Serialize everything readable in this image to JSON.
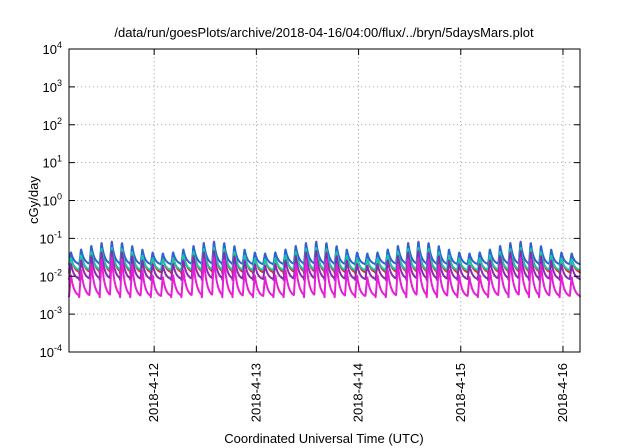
{
  "chart_data": {
    "type": "line",
    "title": "/data/run/goesPlots/archive/2018-04-16/04:00/flux/../bryn/5daysMars.plot",
    "xlabel": "Coordinated Universal Time (UTC)",
    "ylabel": "cGy/day",
    "yscale": "log",
    "ylim": [
      0.0001,
      10000
    ],
    "y_ticks": [
      {
        "base": "10",
        "exp": "-4",
        "value": 0.0001
      },
      {
        "base": "10",
        "exp": "-3",
        "value": 0.001
      },
      {
        "base": "10",
        "exp": "-2",
        "value": 0.01
      },
      {
        "base": "10",
        "exp": "-1",
        "value": 0.1
      },
      {
        "base": "10",
        "exp": "0",
        "value": 1
      },
      {
        "base": "10",
        "exp": "1",
        "value": 10
      },
      {
        "base": "10",
        "exp": "2",
        "value": 100
      },
      {
        "base": "10",
        "exp": "3",
        "value": 1000
      },
      {
        "base": "10",
        "exp": "4",
        "value": 10000
      }
    ],
    "x_ticks": [
      "2018-4-12",
      "2018-4-13",
      "2018-4-14",
      "2018-4-15",
      "2018-4-16"
    ],
    "xlim": [
      "2018-04-11 04:00",
      "2018-04-16 04:00"
    ],
    "grid": true,
    "pulse_period_hours": 2.4,
    "series": [
      {
        "color": "#e8262d",
        "peak": 0.09,
        "trough": 0.012
      },
      {
        "color": "#2a63d6",
        "peak": 0.085,
        "trough": 0.02
      },
      {
        "color": "#16c7a8",
        "peak": 0.06,
        "trough": 0.014
      },
      {
        "color": "#8a2ab0",
        "peak": 0.05,
        "trough": 0.008
      },
      {
        "color": "#e61fd6",
        "peak": 0.035,
        "trough": 0.0028
      }
    ]
  }
}
